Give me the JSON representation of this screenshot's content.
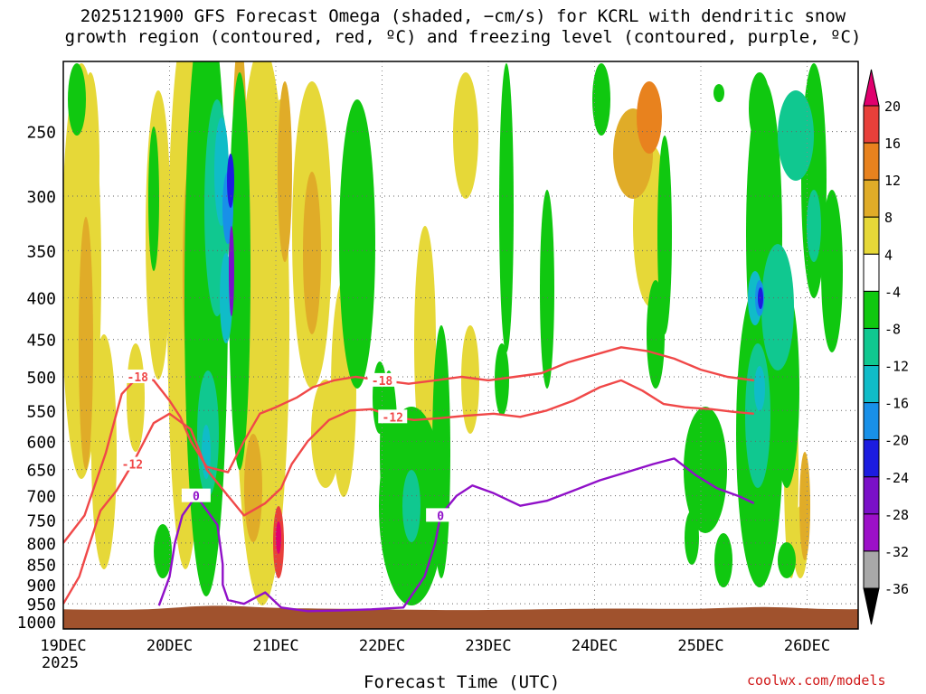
{
  "title_line1": "2025121900 GFS Forecast Omega (shaded, −cm/s) for KCRL with dendritic snow",
  "title_line2": "growth region (contoured, red, ºC) and freezing level (contoured, purple, ºC)",
  "credit": "coolwx.com/models",
  "chart_data": {
    "type": "heatmap",
    "title": "2025121900 GFS Forecast Omega (shaded, −cm/s) for KCRL with dendritic snow growth region (contoured, red, ºC) and freezing level (contoured, purple, ºC)",
    "xlabel": "Forecast Time (UTC)",
    "ylabel": "",
    "x_ticks": [
      "19DEC",
      "20DEC",
      "21DEC",
      "22DEC",
      "23DEC",
      "24DEC",
      "25DEC",
      "26DEC"
    ],
    "x_year_label": "2025",
    "y_ticks": [
      250,
      300,
      350,
      400,
      450,
      500,
      550,
      600,
      650,
      700,
      750,
      800,
      850,
      900,
      950,
      1000
    ],
    "y_scale": "log",
    "y_inverted": true,
    "ylim": [
      1020,
      205
    ],
    "grid": true,
    "colorbar": {
      "levels": [
        20,
        16,
        12,
        8,
        4,
        -4,
        -8,
        -12,
        -16,
        -20,
        -24,
        -28,
        -32,
        -36
      ],
      "colors": [
        "#e0006e",
        "#e8403a",
        "#e8821e",
        "#e0ac28",
        "#e6d838",
        "#ffffff",
        "#10c810",
        "#10c890",
        "#10bcc8",
        "#1890e8",
        "#1c1ce0",
        "#7a10c8",
        "#9c10c8",
        "#a8a8a8",
        "#000000"
      ]
    },
    "contours": [
      {
        "name": "dgz_-18C",
        "label": "-18",
        "color": "#f04848",
        "points": [
          [
            0.0,
            800
          ],
          [
            0.2,
            740
          ],
          [
            0.4,
            620
          ],
          [
            0.55,
            525
          ],
          [
            0.7,
            500
          ],
          [
            0.85,
            505
          ],
          [
            1.0,
            535
          ],
          [
            1.1,
            560
          ],
          [
            1.2,
            600
          ],
          [
            1.35,
            645
          ],
          [
            1.55,
            655
          ],
          [
            1.7,
            600
          ],
          [
            1.85,
            555
          ],
          [
            2.0,
            545
          ],
          [
            2.2,
            530
          ],
          [
            2.35,
            515
          ],
          [
            2.55,
            505
          ],
          [
            2.75,
            500
          ],
          [
            3.0,
            505
          ],
          [
            3.25,
            510
          ],
          [
            3.5,
            505
          ],
          [
            3.75,
            500
          ],
          [
            4.0,
            505
          ],
          [
            4.25,
            500
          ],
          [
            4.5,
            495
          ],
          [
            4.75,
            480
          ],
          [
            5.0,
            470
          ],
          [
            5.25,
            460
          ],
          [
            5.5,
            465
          ],
          [
            5.75,
            475
          ],
          [
            6.0,
            490
          ],
          [
            6.25,
            500
          ],
          [
            6.5,
            505
          ]
        ]
      },
      {
        "name": "dgz_-12C",
        "label": "-12",
        "color": "#f04848",
        "points": [
          [
            0.0,
            950
          ],
          [
            0.15,
            880
          ],
          [
            0.25,
            800
          ],
          [
            0.35,
            730
          ],
          [
            0.5,
            690
          ],
          [
            0.65,
            640
          ],
          [
            0.85,
            570
          ],
          [
            1.0,
            555
          ],
          [
            1.2,
            580
          ],
          [
            1.35,
            650
          ],
          [
            1.55,
            700
          ],
          [
            1.7,
            740
          ],
          [
            1.9,
            715
          ],
          [
            2.05,
            685
          ],
          [
            2.15,
            640
          ],
          [
            2.3,
            600
          ],
          [
            2.5,
            565
          ],
          [
            2.7,
            550
          ],
          [
            2.9,
            548
          ],
          [
            3.1,
            560
          ],
          [
            3.3,
            565
          ],
          [
            3.55,
            562
          ],
          [
            3.8,
            558
          ],
          [
            4.05,
            555
          ],
          [
            4.3,
            560
          ],
          [
            4.55,
            550
          ],
          [
            4.8,
            535
          ],
          [
            5.05,
            515
          ],
          [
            5.25,
            505
          ],
          [
            5.45,
            520
          ],
          [
            5.65,
            540
          ],
          [
            5.85,
            545
          ],
          [
            6.1,
            548
          ],
          [
            6.3,
            552
          ],
          [
            6.5,
            555
          ]
        ]
      },
      {
        "name": "freezing_0C",
        "label": "0",
        "color": "#9010c8",
        "points": [
          [
            0.9,
            955
          ],
          [
            1.0,
            880
          ],
          [
            1.05,
            800
          ],
          [
            1.12,
            740
          ],
          [
            1.25,
            700
          ],
          [
            1.45,
            760
          ],
          [
            1.5,
            850
          ],
          [
            1.5,
            900
          ],
          [
            1.55,
            940
          ],
          [
            1.7,
            950
          ],
          [
            1.9,
            920
          ],
          [
            2.05,
            960
          ],
          [
            2.3,
            970
          ],
          [
            2.6,
            968
          ],
          [
            2.9,
            965
          ],
          [
            3.2,
            960
          ],
          [
            3.4,
            880
          ],
          [
            3.5,
            800
          ],
          [
            3.55,
            740
          ],
          [
            3.7,
            700
          ],
          [
            3.85,
            680
          ],
          [
            4.05,
            695
          ],
          [
            4.3,
            720
          ],
          [
            4.55,
            710
          ],
          [
            4.8,
            690
          ],
          [
            5.05,
            670
          ],
          [
            5.3,
            655
          ],
          [
            5.55,
            640
          ],
          [
            5.75,
            630
          ],
          [
            5.95,
            660
          ],
          [
            6.15,
            685
          ],
          [
            6.35,
            700
          ],
          [
            6.5,
            715
          ]
        ]
      }
    ]
  }
}
